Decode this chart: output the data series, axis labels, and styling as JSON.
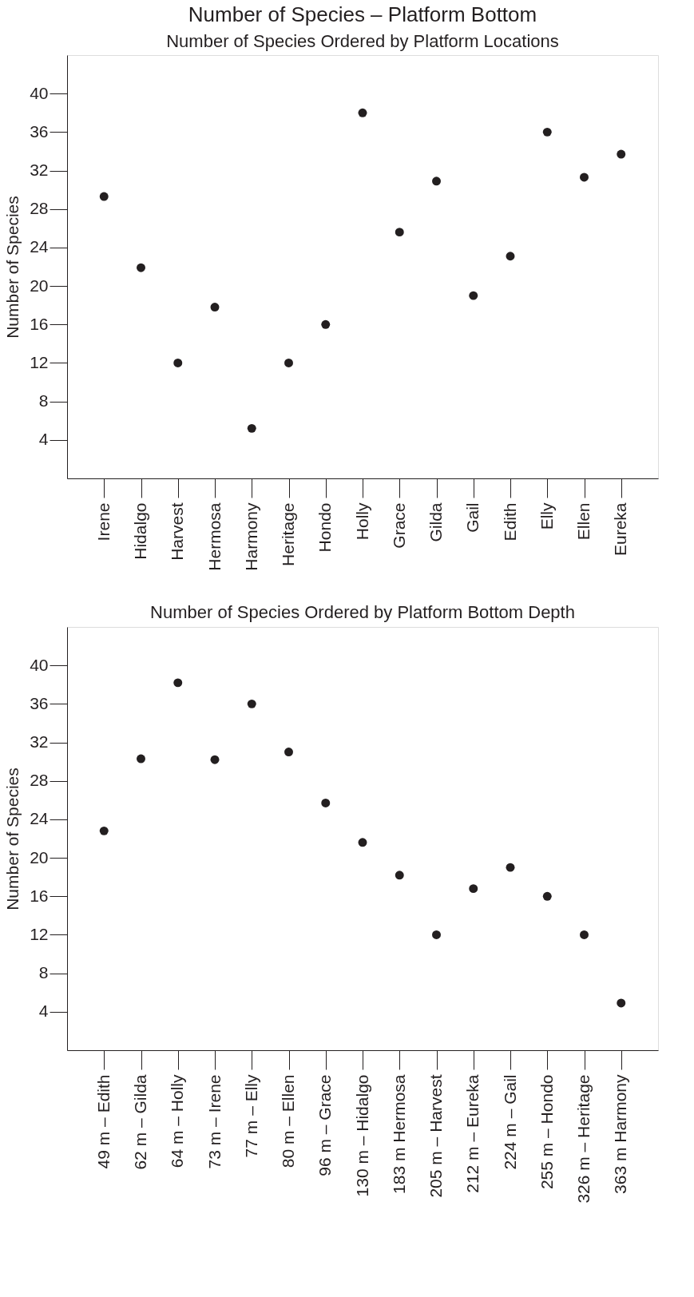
{
  "chart_data": [
    {
      "type": "scatter",
      "title": "Number of Species – Platform Bottom",
      "subtitle": "Number of Species Ordered by Platform Locations",
      "ylabel": "Number of Species",
      "categories": [
        "Irene",
        "Hidalgo",
        "Harvest",
        "Hermosa",
        "Harmony",
        "Heritage",
        "Hondo",
        "Holly",
        "Grace",
        "Gilda",
        "Gail",
        "Edith",
        "Elly",
        "Ellen",
        "Eureka"
      ],
      "values": [
        29.3,
        21.9,
        12,
        17.8,
        5.2,
        12,
        16,
        38,
        25.6,
        30.9,
        19,
        23.1,
        36,
        31.3,
        33.7
      ],
      "color": "#231f20",
      "marker": "circle",
      "ylim": [
        0,
        44
      ],
      "yticks": [
        4,
        8,
        12,
        16,
        20,
        24,
        28,
        32,
        36,
        40
      ],
      "grid": false
    },
    {
      "type": "scatter",
      "title": "Number of Species Ordered by Platform Bottom Depth",
      "ylabel": "Number of Species",
      "categories": [
        "49 m – Edith",
        "62 m – Gilda",
        "64 m – Holly",
        "73 m – Irene",
        "77 m – Elly",
        "80 m – Ellen",
        "96 m – Grace",
        "130 m – Hidalgo",
        "183 m Hermosa",
        "205 m – Harvest",
        "212 m – Eureka",
        "224 m – Gail",
        "255 m – Hondo",
        "326 m – Heritage",
        "363 m Harmony"
      ],
      "values": [
        22.8,
        30.3,
        38.2,
        30.2,
        36,
        31,
        25.7,
        21.6,
        18.2,
        12,
        16.8,
        19,
        16,
        12,
        4.9
      ],
      "color": "#231f20",
      "marker": "circle",
      "ylim": [
        0,
        44
      ],
      "yticks": [
        4,
        8,
        12,
        16,
        20,
        24,
        28,
        32,
        36,
        40
      ],
      "grid": false
    }
  ]
}
